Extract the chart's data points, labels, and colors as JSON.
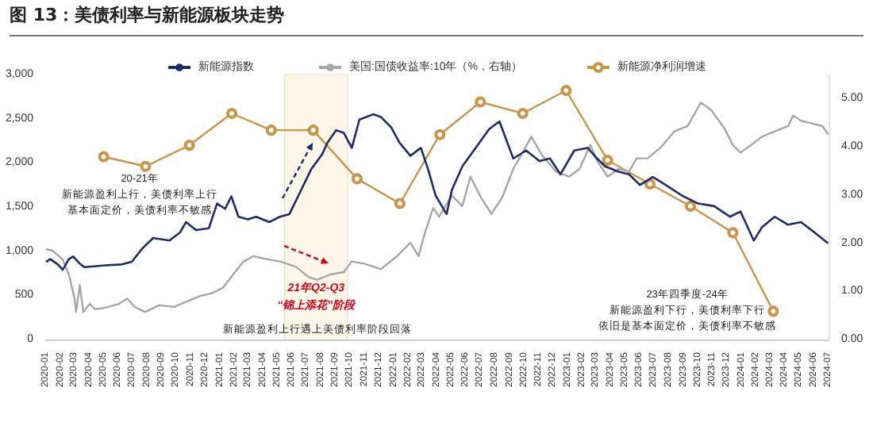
{
  "chart_data": {
    "type": "line",
    "title": "图 13：美债利率与新能源板块走势",
    "xlim": [
      "2020-01-01",
      "2024-07-01"
    ],
    "xticks": [
      "2020-01",
      "2020-02",
      "2020-03",
      "2020-04",
      "2020-05",
      "2020-06",
      "2020-07",
      "2020-08",
      "2020-09",
      "2020-10",
      "2020-11",
      "2020-12",
      "2021-01",
      "2021-02",
      "2021-03",
      "2021-04",
      "2021-05",
      "2021-06",
      "2021-07",
      "2021-08",
      "2021-09",
      "2021-10",
      "2021-11",
      "2021-12",
      "2022-01",
      "2022-02",
      "2022-03",
      "2022-04",
      "2022-05",
      "2022-06",
      "2022-07",
      "2022-08",
      "2022-09",
      "2022-10",
      "2022-11",
      "2022-12",
      "2023-01",
      "2023-02",
      "2023-03",
      "2023-04",
      "2023-05",
      "2023-06",
      "2023-07",
      "2023-08",
      "2023-09",
      "2023-10",
      "2023-11",
      "2023-12",
      "2024-01",
      "2024-02",
      "2024-03",
      "2024-04",
      "2024-05",
      "2024-06",
      "2024-07"
    ],
    "ylim": [
      0,
      3000
    ],
    "yticks": [
      0,
      500,
      {
        "value": 1000,
        "label": "1,000"
      },
      {
        "value": 1500,
        "label": "1,500"
      },
      {
        "value": 2000,
        "label": "2,000"
      },
      {
        "value": 2500,
        "label": "2,500"
      },
      {
        "value": 3000,
        "label": "3,000"
      }
    ],
    "y2lim": [
      0,
      5.5
    ],
    "y2ticks": [
      {
        "value": 0,
        "label": "0.00"
      },
      {
        "value": 1,
        "label": "1.00"
      },
      {
        "value": 2,
        "label": "2.00"
      },
      {
        "value": 3,
        "label": "3.00"
      },
      {
        "value": 4,
        "label": "4.00"
      },
      {
        "value": 5,
        "label": "5.00"
      }
    ],
    "legend": "top",
    "grid": false,
    "marker": "none",
    "series": [
      {
        "name": "新能源指数",
        "color": "#1f2a6b",
        "x": [
          "2020-01-01",
          "2020-01-10",
          "2020-01-26",
          "2020-02-05",
          "2020-02-18",
          "2020-02-27",
          "2020-03-10",
          "2020-03-21",
          "2020-05-05",
          "2020-06-08",
          "2020-06-29",
          "2020-07-21",
          "2020-08-13",
          "2020-09-16",
          "2020-10-08",
          "2020-10-21",
          "2020-11-11",
          "2020-12-08",
          "2020-12-25",
          "2021-01-11",
          "2021-01-24",
          "2021-02-08",
          "2021-02-28",
          "2021-03-17",
          "2021-04-14",
          "2021-05-06",
          "2021-05-26",
          "2021-06-14",
          "2021-07-11",
          "2021-08-03",
          "2021-08-14",
          "2021-09-01",
          "2021-09-17",
          "2021-10-04",
          "2021-10-20",
          "2021-11-18",
          "2021-12-04",
          "2021-12-26",
          "2022-01-12",
          "2022-02-04",
          "2022-02-26",
          "2022-03-13",
          "2022-03-29",
          "2022-04-21",
          "2022-05-02",
          "2022-05-24",
          "2022-06-21",
          "2022-07-19",
          "2022-08-10",
          "2022-09-08",
          "2022-10-05",
          "2022-11-02",
          "2022-11-24",
          "2022-12-16",
          "2023-01-14",
          "2023-02-11",
          "2023-03-03",
          "2023-03-20",
          "2023-04-17",
          "2023-05-09",
          "2023-06-01",
          "2023-06-28",
          "2023-07-25",
          "2023-08-28",
          "2023-10-01",
          "2023-11-04",
          "2023-12-07",
          "2023-12-29",
          "2024-01-26",
          "2024-02-12",
          "2024-03-10",
          "2024-04-07",
          "2024-05-04",
          "2024-06-02",
          "2024-06-30"
        ],
        "values": [
          880,
          910,
          850,
          790,
          910,
          940,
          870,
          820,
          840,
          850,
          880,
          1030,
          1150,
          1120,
          1210,
          1330,
          1240,
          1260,
          1540,
          1480,
          1620,
          1390,
          1360,
          1390,
          1330,
          1390,
          1420,
          1630,
          1930,
          2100,
          2230,
          2370,
          2340,
          2170,
          2490,
          2550,
          2520,
          2400,
          2230,
          2080,
          2170,
          1930,
          1630,
          1420,
          1690,
          1960,
          2170,
          2380,
          2470,
          2050,
          2140,
          2020,
          2050,
          1870,
          2140,
          2170,
          2050,
          1960,
          1900,
          1870,
          1750,
          1840,
          1750,
          1630,
          1540,
          1510,
          1390,
          1450,
          1120,
          1270,
          1390,
          1300,
          1330,
          1210,
          1090
        ]
      },
      {
        "name": "美国:国债收益率:10年（%，右轴）",
        "color": "#a6a6a6",
        "axis": "y2",
        "x": [
          "2020-01-01",
          "2020-01-15",
          "2020-02-05",
          "2020-02-18",
          "2020-03-01",
          "2020-03-04",
          "2020-03-12",
          "2020-03-19",
          "2020-04-02",
          "2020-04-13",
          "2020-05-05",
          "2020-06-02",
          "2020-06-19",
          "2020-07-05",
          "2020-07-27",
          "2020-08-25",
          "2020-09-27",
          "2020-10-30",
          "2020-11-22",
          "2020-12-14",
          "2021-01-06",
          "2021-01-28",
          "2021-02-19",
          "2021-03-11",
          "2021-04-03",
          "2021-05-06",
          "2021-06-09",
          "2021-07-06",
          "2021-07-23",
          "2021-08-20",
          "2021-09-17",
          "2021-10-04",
          "2021-11-01",
          "2021-12-04",
          "2022-01-07",
          "2022-02-04",
          "2022-02-21",
          "2022-03-07",
          "2022-03-24",
          "2022-04-05",
          "2022-05-02",
          "2022-05-24",
          "2022-06-10",
          "2022-07-02",
          "2022-07-24",
          "2022-08-16",
          "2022-09-08",
          "2022-09-24",
          "2022-10-16",
          "2022-11-08",
          "2022-12-06",
          "2023-01-03",
          "2023-01-25",
          "2023-02-17",
          "2023-03-03",
          "2023-03-25",
          "2023-04-17",
          "2023-05-09",
          "2023-05-25",
          "2023-06-17",
          "2023-07-15",
          "2023-08-12",
          "2023-09-09",
          "2023-10-07",
          "2023-10-29",
          "2023-11-26",
          "2023-12-13",
          "2023-12-29",
          "2024-01-21",
          "2024-02-12",
          "2024-03-10",
          "2024-04-07",
          "2024-04-18",
          "2024-05-04",
          "2024-05-26",
          "2024-06-18",
          "2024-06-30"
        ],
        "values": [
          1.88,
          1.84,
          1.66,
          1.35,
          0.85,
          0.57,
          1.13,
          0.57,
          0.74,
          0.63,
          0.66,
          0.74,
          0.85,
          0.68,
          0.57,
          0.71,
          0.68,
          0.82,
          0.91,
          0.96,
          1.07,
          1.35,
          1.62,
          1.73,
          1.68,
          1.62,
          1.51,
          1.29,
          1.24,
          1.35,
          1.4,
          1.62,
          1.57,
          1.46,
          1.73,
          2.01,
          1.73,
          2.23,
          2.73,
          2.55,
          2.99,
          2.77,
          3.38,
          2.95,
          2.61,
          2.95,
          3.54,
          3.82,
          4.21,
          3.82,
          3.49,
          3.38,
          3.54,
          4.04,
          3.71,
          3.38,
          3.54,
          3.49,
          3.76,
          3.76,
          3.99,
          4.32,
          4.43,
          4.92,
          4.76,
          4.37,
          4.04,
          3.88,
          4.04,
          4.21,
          4.32,
          4.43,
          4.65,
          4.54,
          4.49,
          4.43,
          4.26
        ]
      },
      {
        "name": "新能源净利润增速",
        "color": "#c8964a",
        "marker": "circle",
        "x": [
          "2020-05-01",
          "2020-07-28",
          "2020-10-28",
          "2021-01-25",
          "2021-04-18",
          "2021-07-15",
          "2021-10-15",
          "2022-01-13",
          "2022-04-07",
          "2022-07-01",
          "2022-09-28",
          "2022-12-28",
          "2023-03-25",
          "2023-06-22",
          "2023-09-15",
          "2023-12-13",
          "2024-03-07"
        ],
        "values": [
          2070,
          1960,
          2200,
          2560,
          2370,
          2370,
          1820,
          1540,
          2320,
          2690,
          2560,
          2820,
          2030,
          1760,
          1510,
          1210,
          320
        ]
      }
    ],
    "bands": [
      {
        "axis": "x",
        "from": "2021-05-16",
        "to": "2021-09-25",
        "label": "21年Q2-Q3\n“锦上添花”阶段",
        "color": "#fdf7ea"
      }
    ],
    "annotations": [
      "20-21年",
      "新能源盈利上行，美债利率上行",
      "基本面定价，美债利率不敏感",
      "新能源盈利上行遇上美债利率阶段回落",
      "23年四季度-24年",
      "新能源盈利下行，美债利率下行",
      "依旧是基本面定价，美债利率不敏感"
    ]
  }
}
